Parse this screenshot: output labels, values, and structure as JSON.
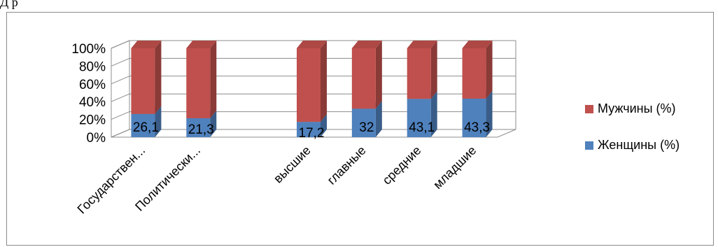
{
  "document": {
    "snippet": "Д   р"
  },
  "chart_data": {
    "type": "bar",
    "stacked": true,
    "percent_stacked": true,
    "three_d": true,
    "categories": [
      "Государствен...",
      "Политически...",
      "",
      "высшие",
      "главные",
      "средние",
      "младшие"
    ],
    "series": [
      {
        "name": "Женщины (%)",
        "values": [
          26.1,
          21.3,
          null,
          17.2,
          32,
          43.1,
          43.3
        ],
        "color": "#4f81bd",
        "data_labels": [
          "26,1",
          "21,3",
          "",
          "17,2",
          "32",
          "43,1",
          "43,3"
        ]
      },
      {
        "name": "Мужчины (%)",
        "values": [
          73.9,
          78.7,
          null,
          82.8,
          68,
          56.9,
          56.7
        ],
        "color": "#c0504d"
      }
    ],
    "y_ticks": [
      "0%",
      "20%",
      "40%",
      "60%",
      "80%",
      "100%"
    ],
    "ylim": [
      0,
      100
    ],
    "legend_position": "right",
    "grid": true
  }
}
